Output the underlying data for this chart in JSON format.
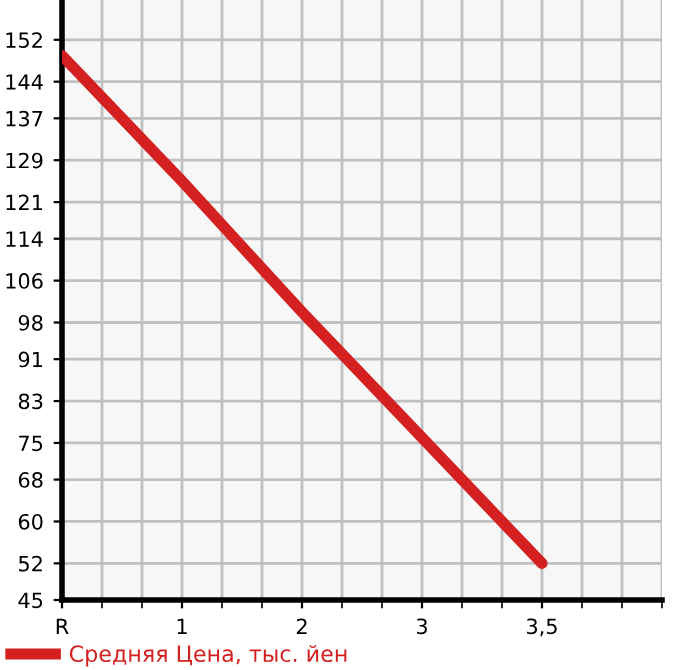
{
  "chart_data": {
    "type": "line",
    "categories": [
      "R",
      "1",
      "2",
      "3",
      "3,5"
    ],
    "series": [
      {
        "name": "Средняя Цена, тыс. йен",
        "color": "#d42020",
        "values": [
          149,
          125,
          100,
          76,
          52
        ]
      }
    ],
    "ylim": [
      45,
      159.6
    ],
    "yticks": [
      45,
      52,
      60,
      68,
      75,
      83,
      91,
      98,
      106,
      114,
      121,
      129,
      137,
      144,
      152
    ],
    "grid": true,
    "legend": "bottom",
    "marker": "none",
    "line_style": "solid"
  }
}
